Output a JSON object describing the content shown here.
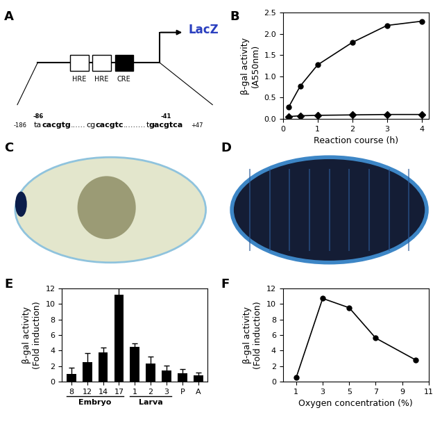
{
  "panel_labels": [
    "A",
    "B",
    "C",
    "D",
    "E",
    "F"
  ],
  "diagram": {
    "reporter": "LacZ",
    "reporter_color": "#2a3fbf",
    "elements": [
      {
        "label": "HRE",
        "filled": false
      },
      {
        "label": "HRE",
        "filled": false
      },
      {
        "label": "CRE",
        "filled": true
      }
    ],
    "sequence": [
      {
        "text": "-186",
        "small": true
      },
      {
        "text": "ta",
        "above": "-86"
      },
      {
        "text": "cacgtg",
        "bold": true
      },
      {
        "text": "......"
      },
      {
        "text": "cg"
      },
      {
        "text": "cacgtc",
        "bold": true
      },
      {
        "text": "........."
      },
      {
        "text": "t"
      },
      {
        "text": "gacgtca",
        "bold": true,
        "above": "-41"
      },
      {
        "text": "+47",
        "small": true
      }
    ]
  },
  "chart_data": [
    {
      "type": "line",
      "xlabel": "Reaction course (h)",
      "ylabel": "β-gal activity\n(A550nm)",
      "x": [
        0.17,
        0.5,
        1,
        2,
        3,
        4
      ],
      "xlim": [
        0,
        4.2
      ],
      "xticks": [
        0,
        1,
        2,
        3,
        4
      ],
      "ylim": [
        0,
        2.5
      ],
      "yticks": [
        {
          "value": 0,
          "label": "0.0"
        },
        0.5,
        {
          "value": 1,
          "label": "1.0"
        },
        1.5,
        {
          "value": 2,
          "label": "2.0"
        },
        2.5
      ],
      "series": [
        {
          "color": "#000000",
          "marker": "circle",
          "values": [
            0.28,
            0.77,
            1.27,
            1.8,
            2.2,
            2.3
          ]
        },
        {
          "color": "#000000",
          "marker": "diamond",
          "values": [
            0.05,
            0.07,
            0.08,
            0.09,
            0.1,
            0.1
          ]
        }
      ]
    },
    {
      "type": "bar",
      "ylabel": "β-gal activity\n(Fold induction)",
      "categories": [
        "8",
        "12",
        "14",
        "17",
        "1",
        "2",
        "3",
        "P",
        "A"
      ],
      "values": [
        1.0,
        2.5,
        3.8,
        11.2,
        4.5,
        2.3,
        1.4,
        1.1,
        0.8
      ],
      "errors": [
        0.8,
        1.2,
        0.6,
        0.9,
        0.4,
        0.9,
        0.7,
        0.5,
        0.4
      ],
      "color": "#000000",
      "groups": [
        {
          "label": "Embryo",
          "from": "8",
          "to": "17"
        },
        {
          "label": "Larva",
          "from": "1",
          "to": "3"
        }
      ],
      "ylim": [
        0,
        12
      ],
      "yticks": [
        0,
        2,
        4,
        6,
        8,
        10,
        12
      ]
    },
    {
      "type": "line",
      "xlabel": "Oxygen concentration (%)",
      "ylabel": "β-gal activity\n(Fold induction)",
      "x": [
        1,
        3,
        5,
        7,
        10
      ],
      "series": [
        {
          "color": "#000000",
          "marker": "circle",
          "values": [
            0.5,
            10.7,
            9.5,
            5.6,
            2.8
          ]
        }
      ],
      "xlim": [
        0,
        11
      ],
      "xticks": [
        1,
        3,
        5,
        7,
        9,
        11
      ],
      "ylim": [
        0,
        12
      ],
      "yticks": [
        0,
        2,
        4,
        6,
        8,
        10,
        12
      ]
    }
  ]
}
